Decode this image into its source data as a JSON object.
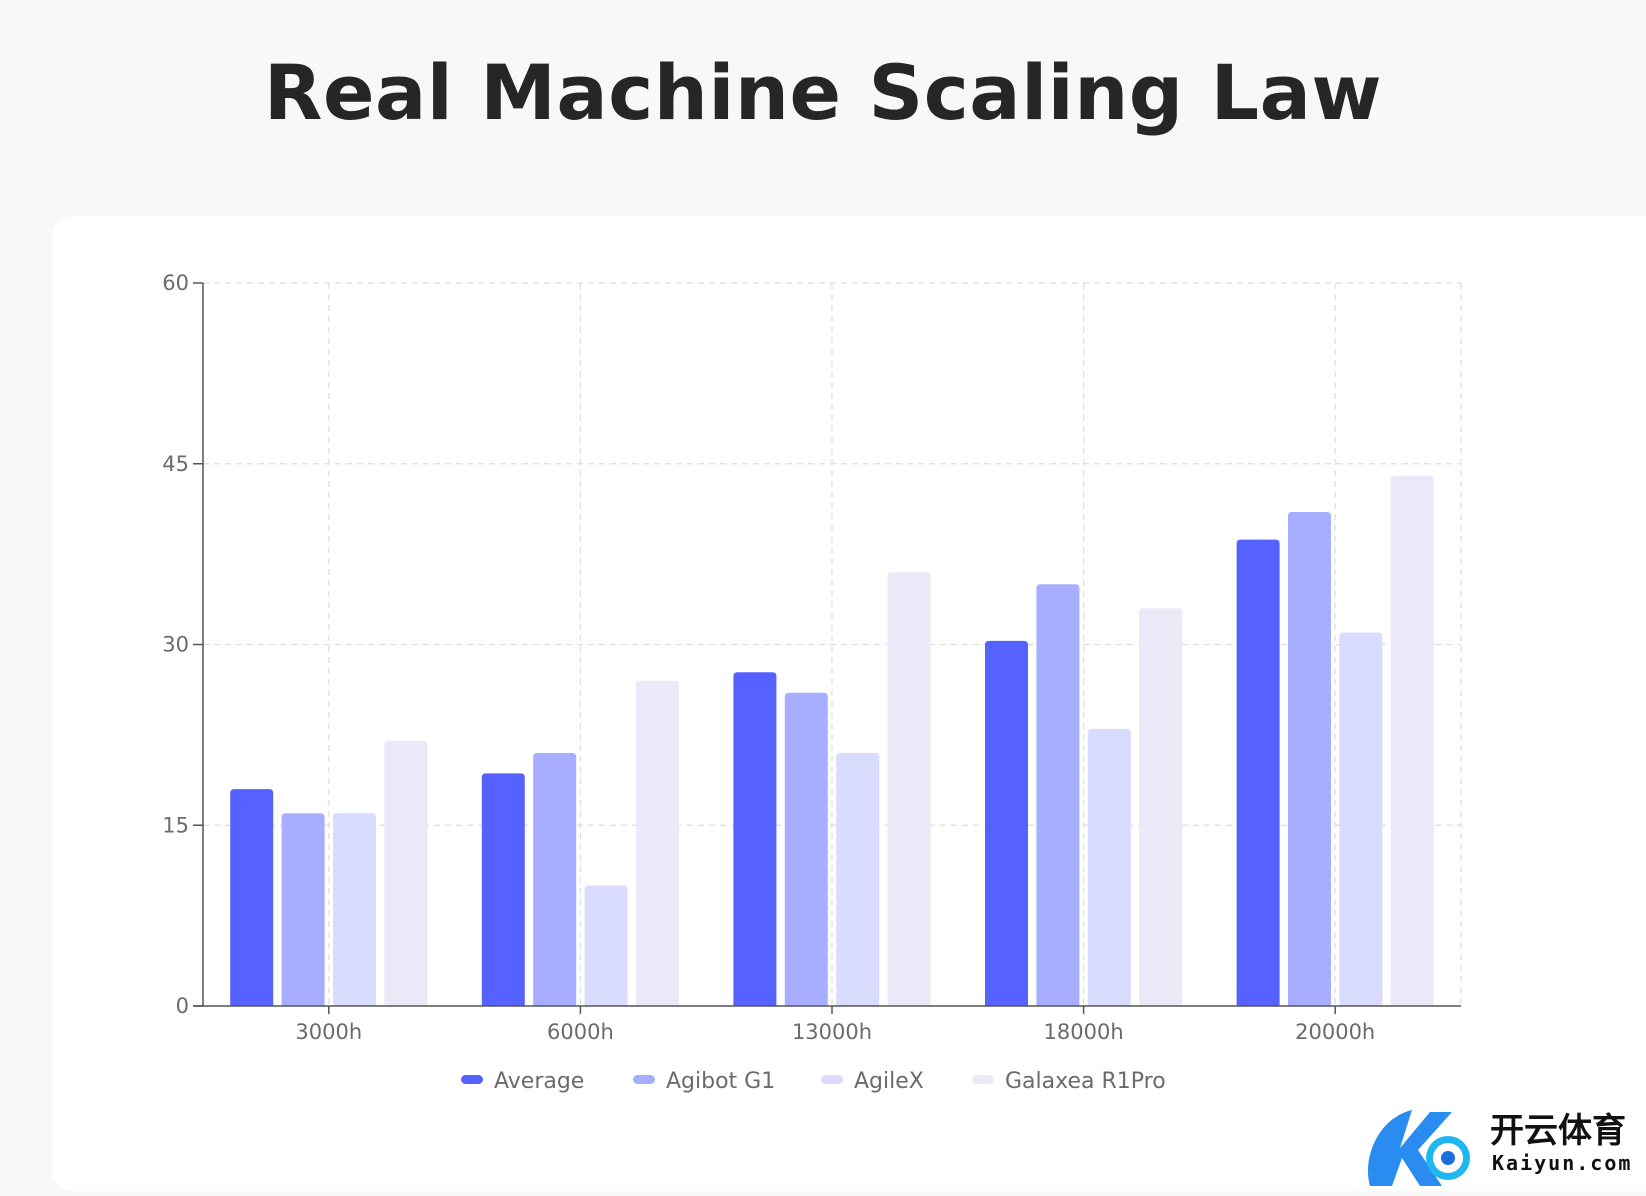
{
  "chart_data": {
    "type": "bar",
    "title": "Real Machine Scaling Law",
    "categories": [
      "3000h",
      "6000h",
      "13000h",
      "18000h",
      "20000h"
    ],
    "ylim": [
      0,
      60
    ],
    "yticks": [
      0,
      15,
      30,
      45,
      60
    ],
    "grid": true,
    "legend_position": "bottom",
    "series": [
      {
        "name": "Average",
        "color": "#5662ff",
        "values": [
          18,
          19.3,
          27.7,
          30.3,
          38.7
        ]
      },
      {
        "name": "Agibot G1",
        "color": "#a8aeff",
        "values": [
          16,
          21,
          26,
          35,
          41
        ]
      },
      {
        "name": "AgileX",
        "color": "#d9dbff",
        "values": [
          16,
          10,
          21,
          23,
          31
        ]
      },
      {
        "name": "Galaxea R1Pro",
        "color": "#e9e9f8",
        "values": [
          22,
          27,
          36,
          33,
          44
        ]
      }
    ]
  },
  "watermark": {
    "chinese_text": "开云体育",
    "latin_text": "Kaiyun.com"
  }
}
